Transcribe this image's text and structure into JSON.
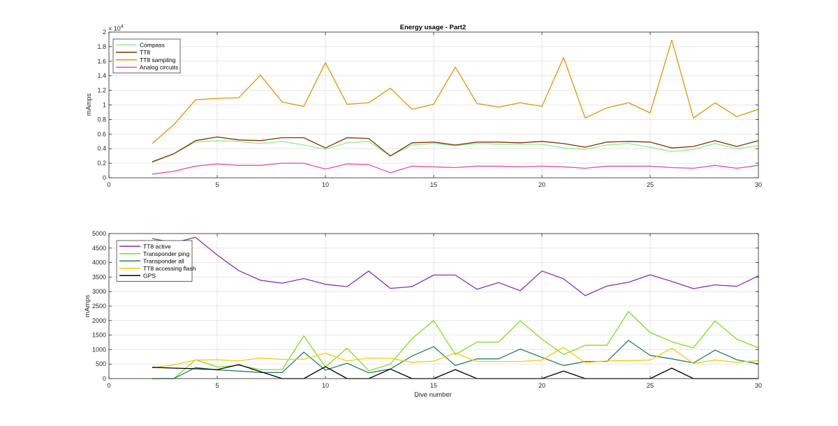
{
  "chart_data": [
    {
      "type": "line",
      "title": "Energy usage - Part2",
      "xlabel": "",
      "ylabel": "mAmps",
      "exponent_label": "× 10",
      "exponent_power": "4",
      "xlim": [
        0,
        30
      ],
      "ylim": [
        0,
        20000
      ],
      "xticks": [
        0,
        5,
        10,
        15,
        20,
        25,
        30
      ],
      "yticks": [
        0,
        2000,
        4000,
        6000,
        8000,
        10000,
        12000,
        14000,
        16000,
        18000,
        20000
      ],
      "ytick_labels": [
        "0",
        "0.2",
        "0.4",
        "0.6",
        "0.8",
        "1",
        "1.2",
        "1.4",
        "1.6",
        "1.8",
        "2"
      ],
      "grid": true,
      "legend_position": "top-left",
      "x": [
        2,
        3,
        4,
        5,
        6,
        7,
        8,
        9,
        10,
        11,
        12,
        13,
        14,
        15,
        16,
        17,
        18,
        19,
        20,
        21,
        22,
        23,
        24,
        25,
        26,
        27,
        28,
        29,
        30
      ],
      "series": [
        {
          "name": "Compass",
          "color": "#90ee90",
          "values": [
            2100,
            3300,
            4900,
            5100,
            5000,
            4700,
            5000,
            4500,
            3900,
            4800,
            5000,
            3000,
            4500,
            4700,
            4400,
            4700,
            4600,
            4600,
            4600,
            4100,
            3900,
            4500,
            4700,
            4200,
            3600,
            3900,
            4700,
            4000,
            4400
          ]
        },
        {
          "name": "TT8",
          "color": "#7f3300",
          "values": [
            2200,
            3300,
            5100,
            5600,
            5200,
            5100,
            5500,
            5500,
            4100,
            5500,
            5400,
            3000,
            4800,
            4900,
            4500,
            4900,
            4900,
            4800,
            5000,
            4700,
            4200,
            4900,
            5000,
            4900,
            4100,
            4300,
            5100,
            4300,
            5100
          ]
        },
        {
          "name": "TT8 sampling",
          "color": "#e59400",
          "values": [
            4700,
            7300,
            10700,
            10900,
            11000,
            14100,
            10400,
            9800,
            15800,
            10100,
            10300,
            12300,
            9400,
            10100,
            15200,
            10200,
            9700,
            10300,
            9800,
            16500,
            8200,
            9600,
            10300,
            8900,
            18900,
            8200,
            10300,
            8400,
            9400
          ]
        },
        {
          "name": "Analog circuits",
          "color": "#e64da6",
          "values": [
            500,
            900,
            1600,
            1900,
            1700,
            1700,
            2000,
            2000,
            1200,
            1900,
            1800,
            700,
            1600,
            1500,
            1400,
            1600,
            1600,
            1500,
            1600,
            1500,
            1300,
            1600,
            1600,
            1600,
            1400,
            1300,
            1700,
            1300,
            1700
          ]
        }
      ]
    },
    {
      "type": "line",
      "title": "",
      "xlabel": "Dive number",
      "ylabel": "mAmps",
      "xlim": [
        0,
        30
      ],
      "ylim": [
        0,
        5000
      ],
      "xticks": [
        0,
        5,
        10,
        15,
        20,
        25,
        30
      ],
      "yticks": [
        0,
        500,
        1000,
        1500,
        2000,
        2500,
        3000,
        3500,
        4000,
        4500,
        5000
      ],
      "ytick_labels": [
        "0",
        "500",
        "1000",
        "1500",
        "2000",
        "2500",
        "3000",
        "3500",
        "4000",
        "4500",
        "5000"
      ],
      "grid": true,
      "legend_position": "top-left",
      "x": [
        2,
        3,
        4,
        5,
        6,
        7,
        8,
        9,
        10,
        11,
        12,
        13,
        14,
        15,
        16,
        17,
        18,
        19,
        20,
        21,
        22,
        23,
        24,
        25,
        26,
        27,
        28,
        29,
        30
      ],
      "series": [
        {
          "name": "TT8 active",
          "color": "#8b2fb8",
          "values": [
            4830,
            4680,
            4870,
            4260,
            3720,
            3390,
            3290,
            3450,
            3250,
            3170,
            3710,
            3110,
            3170,
            3570,
            3570,
            3080,
            3310,
            3030,
            3710,
            3440,
            2860,
            3190,
            3320,
            3580,
            3350,
            3100,
            3230,
            3180,
            3540
          ]
        },
        {
          "name": "Transponder ping",
          "color": "#7fdd22",
          "values": [
            0,
            0,
            650,
            400,
            460,
            310,
            310,
            1470,
            400,
            1050,
            270,
            500,
            1380,
            2000,
            830,
            1260,
            1260,
            1990,
            1360,
            830,
            1150,
            1150,
            2310,
            1590,
            1270,
            1060,
            1990,
            1360,
            1060
          ]
        },
        {
          "name": "Transponder all",
          "color": "#267f6e",
          "values": [
            0,
            0,
            380,
            300,
            260,
            210,
            210,
            910,
            290,
            530,
            200,
            330,
            780,
            1100,
            450,
            680,
            680,
            1020,
            730,
            450,
            590,
            590,
            1320,
            800,
            680,
            540,
            980,
            650,
            510
          ]
        },
        {
          "name": "TT8 accessing flash",
          "color": "#f5cc00",
          "values": [
            370,
            470,
            640,
            650,
            610,
            710,
            660,
            670,
            870,
            610,
            710,
            700,
            560,
            600,
            880,
            590,
            590,
            590,
            640,
            1080,
            550,
            610,
            620,
            640,
            1050,
            520,
            640,
            560,
            620
          ]
        },
        {
          "name": "GPS",
          "color": "#000000",
          "values": [
            390,
            360,
            340,
            310,
            480,
            240,
            0,
            0,
            410,
            0,
            0,
            330,
            0,
            0,
            310,
            0,
            0,
            0,
            0,
            260,
            0,
            0,
            0,
            0,
            360,
            0,
            0,
            0,
            0
          ]
        }
      ]
    }
  ]
}
